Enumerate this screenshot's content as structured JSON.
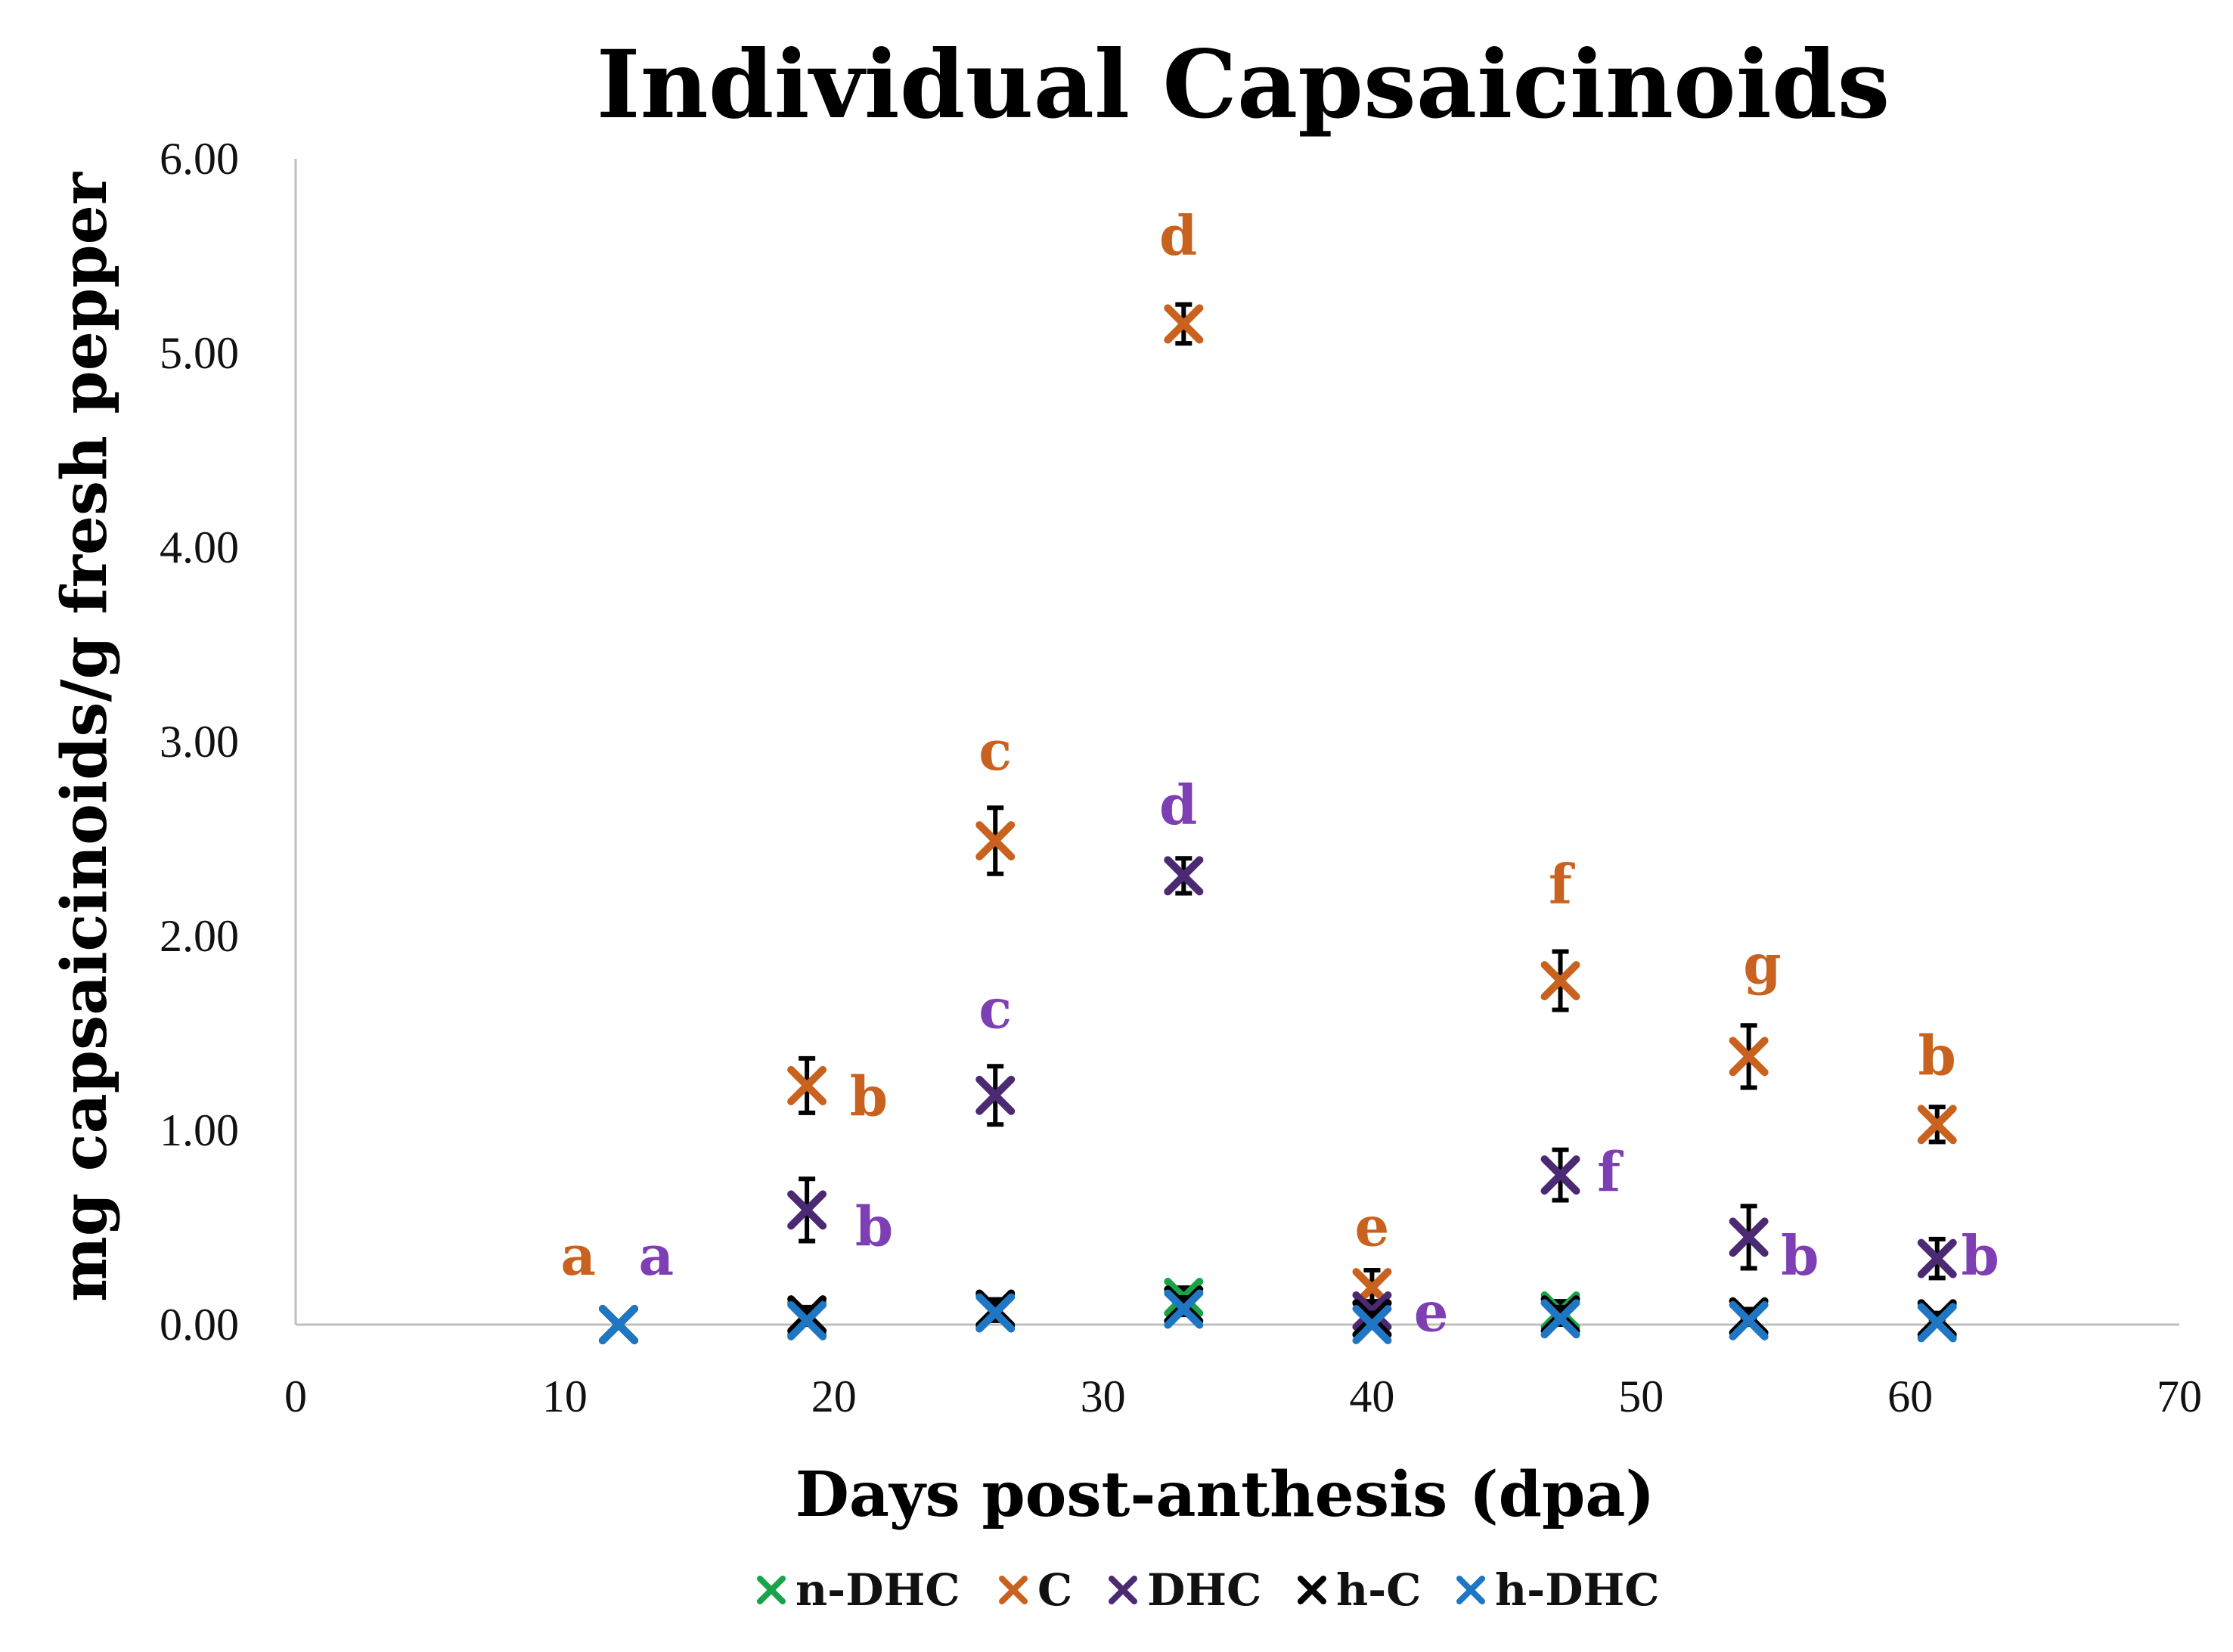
{
  "chart_data": {
    "type": "scatter",
    "title": "Individual Capsaicinoids",
    "xlabel": "Days post-anthesis (dpa)",
    "ylabel": "mg capsaicinoids/g fresh pepper",
    "xlim": [
      0,
      70
    ],
    "ylim": [
      0,
      6
    ],
    "xticks": [
      0,
      10,
      20,
      30,
      40,
      50,
      60,
      70
    ],
    "xtick_labels": [
      "0",
      "10",
      "20",
      "30",
      "40",
      "50",
      "60",
      "70"
    ],
    "yticks": [
      0,
      1,
      2,
      3,
      4,
      5,
      6
    ],
    "ytick_labels": [
      "0.00",
      "1.00",
      "2.00",
      "3.00",
      "4.00",
      "5.00",
      "6.00"
    ],
    "grid": false,
    "legend_position": "bottom",
    "marker": "×",
    "series": [
      {
        "name": "n-DHC",
        "color": "#1aa34a",
        "points": [
          {
            "x": 12,
            "y": 0.0,
            "err": 0.0
          },
          {
            "x": 19,
            "y": 0.03,
            "err": 0.04
          },
          {
            "x": 26,
            "y": 0.07,
            "err": 0.05
          },
          {
            "x": 33,
            "y": 0.14,
            "err": 0.05
          },
          {
            "x": 40,
            "y": 0.03,
            "err": 0.03
          },
          {
            "x": 47,
            "y": 0.07,
            "err": 0.05
          },
          {
            "x": 54,
            "y": 0.04,
            "err": 0.04
          },
          {
            "x": 61,
            "y": 0.02,
            "err": 0.03
          }
        ]
      },
      {
        "name": "C",
        "color": "#c8621e",
        "points": [
          {
            "x": 12,
            "y": 0.0,
            "err": 0.0
          },
          {
            "x": 19,
            "y": 1.23,
            "err": 0.14
          },
          {
            "x": 26,
            "y": 2.49,
            "err": 0.17
          },
          {
            "x": 33,
            "y": 5.15,
            "err": 0.1
          },
          {
            "x": 40,
            "y": 0.19,
            "err": 0.09
          },
          {
            "x": 47,
            "y": 1.77,
            "err": 0.15
          },
          {
            "x": 54,
            "y": 1.38,
            "err": 0.16
          },
          {
            "x": 61,
            "y": 1.03,
            "err": 0.09
          }
        ]
      },
      {
        "name": "DHC",
        "color": "#4b2a73",
        "points": [
          {
            "x": 12,
            "y": 0.0,
            "err": 0.0
          },
          {
            "x": 19,
            "y": 0.59,
            "err": 0.16
          },
          {
            "x": 26,
            "y": 1.18,
            "err": 0.15
          },
          {
            "x": 33,
            "y": 2.31,
            "err": 0.09
          },
          {
            "x": 40,
            "y": 0.07,
            "err": 0.05
          },
          {
            "x": 47,
            "y": 0.77,
            "err": 0.13
          },
          {
            "x": 54,
            "y": 0.45,
            "err": 0.16
          },
          {
            "x": 61,
            "y": 0.34,
            "err": 0.1
          }
        ]
      },
      {
        "name": "h-C",
        "color": "#000000",
        "points": [
          {
            "x": 12,
            "y": 0.0,
            "err": 0.0
          },
          {
            "x": 19,
            "y": 0.05,
            "err": 0.04
          },
          {
            "x": 26,
            "y": 0.08,
            "err": 0.05
          },
          {
            "x": 33,
            "y": 0.1,
            "err": 0.04
          },
          {
            "x": 40,
            "y": 0.03,
            "err": 0.03
          },
          {
            "x": 47,
            "y": 0.05,
            "err": 0.04
          },
          {
            "x": 54,
            "y": 0.04,
            "err": 0.04
          },
          {
            "x": 61,
            "y": 0.03,
            "err": 0.03
          }
        ]
      },
      {
        "name": "h-DHC",
        "color": "#1f77c4",
        "points": [
          {
            "x": 12,
            "y": 0.0,
            "err": 0.0
          },
          {
            "x": 19,
            "y": 0.02,
            "err": 0.02
          },
          {
            "x": 26,
            "y": 0.06,
            "err": 0.03
          },
          {
            "x": 33,
            "y": 0.08,
            "err": 0.03
          },
          {
            "x": 40,
            "y": 0.0,
            "err": 0.02
          },
          {
            "x": 47,
            "y": 0.03,
            "err": 0.03
          },
          {
            "x": 54,
            "y": 0.02,
            "err": 0.02
          },
          {
            "x": 61,
            "y": 0.01,
            "err": 0.02
          }
        ]
      }
    ],
    "annotations": [
      {
        "text": "a",
        "series": "C",
        "x": 10.5,
        "y": 0.35
      },
      {
        "text": "b",
        "series": "C",
        "x": 21.3,
        "y": 1.17
      },
      {
        "text": "c",
        "series": "C",
        "x": 26,
        "y": 2.95
      },
      {
        "text": "d",
        "series": "C",
        "x": 32.8,
        "y": 5.6
      },
      {
        "text": "e",
        "series": "C",
        "x": 40,
        "y": 0.5
      },
      {
        "text": "f",
        "series": "C",
        "x": 47,
        "y": 2.26
      },
      {
        "text": "g",
        "series": "C",
        "x": 54.5,
        "y": 1.85
      },
      {
        "text": "b",
        "series": "C",
        "x": 61,
        "y": 1.38
      },
      {
        "text": "a",
        "series": "DHC",
        "x": 13.4,
        "y": 0.35
      },
      {
        "text": "b",
        "series": "DHC",
        "x": 21.5,
        "y": 0.5
      },
      {
        "text": "c",
        "series": "DHC",
        "x": 26,
        "y": 1.62
      },
      {
        "text": "d",
        "series": "DHC",
        "x": 32.8,
        "y": 2.67
      },
      {
        "text": "e",
        "series": "DHC",
        "x": 42.2,
        "y": 0.06
      },
      {
        "text": "f",
        "series": "DHC",
        "x": 48.8,
        "y": 0.78
      },
      {
        "text": "b",
        "series": "DHC",
        "x": 55.9,
        "y": 0.35
      },
      {
        "text": "b",
        "series": "DHC",
        "x": 62.6,
        "y": 0.35
      }
    ]
  }
}
